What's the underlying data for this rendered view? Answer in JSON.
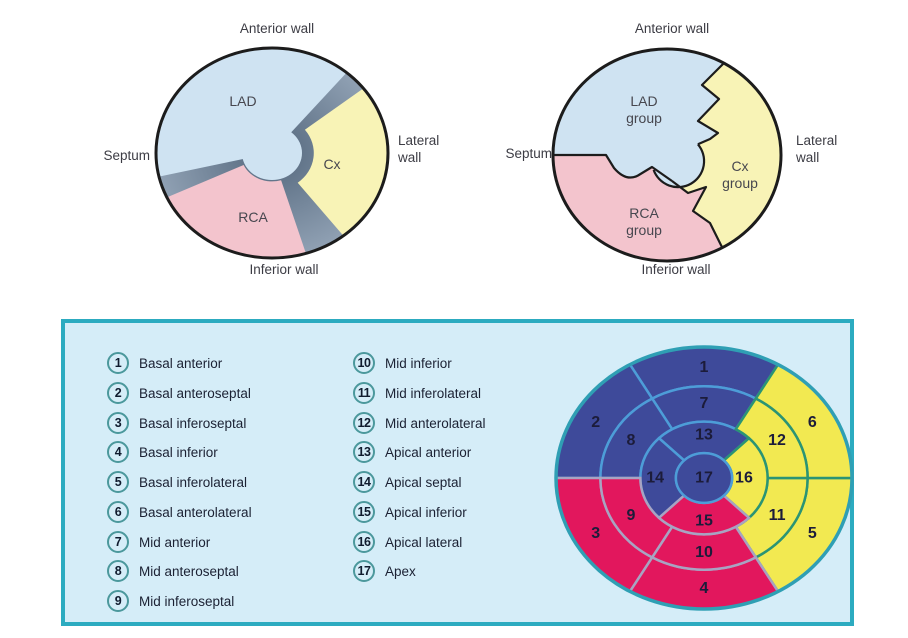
{
  "figures": {
    "artery_map": {
      "walls": {
        "top": "Anterior wall",
        "left": "Septum",
        "right": "Lateral wall",
        "bottom": "Inferior wall"
      },
      "sectors": {
        "lad": "LAD",
        "cx": "Cx",
        "rca": "RCA"
      }
    },
    "artery_groups": {
      "walls": {
        "top": "Anterior wall",
        "left": "Septum",
        "right": "Lateral wall",
        "bottom": "Inferior wall"
      },
      "sectors": {
        "lad": [
          "LAD",
          "group"
        ],
        "cx": [
          "Cx",
          "group"
        ],
        "rca": [
          "RCA",
          "group"
        ]
      }
    }
  },
  "legend": {
    "items": [
      {
        "num": "1",
        "label": "Basal anterior"
      },
      {
        "num": "2",
        "label": "Basal anteroseptal"
      },
      {
        "num": "3",
        "label": "Basal inferoseptal"
      },
      {
        "num": "4",
        "label": "Basal inferior"
      },
      {
        "num": "5",
        "label": "Basal inferolateral"
      },
      {
        "num": "6",
        "label": "Basal anterolateral"
      },
      {
        "num": "7",
        "label": "Mid anterior"
      },
      {
        "num": "8",
        "label": "Mid anteroseptal"
      },
      {
        "num": "9",
        "label": "Mid inferoseptal"
      },
      {
        "num": "10",
        "label": "Mid inferior"
      },
      {
        "num": "11",
        "label": "Mid inferolateral"
      },
      {
        "num": "12",
        "label": "Mid anterolateral"
      },
      {
        "num": "13",
        "label": "Apical anterior"
      },
      {
        "num": "14",
        "label": "Apical septal"
      },
      {
        "num": "15",
        "label": "Apical inferior"
      },
      {
        "num": "16",
        "label": "Apical lateral"
      },
      {
        "num": "17",
        "label": "Apex"
      }
    ]
  },
  "bullseye": {
    "segments": [
      {
        "num": "1",
        "name": "Basal anterior",
        "territory": "lad"
      },
      {
        "num": "2",
        "name": "Basal anteroseptal",
        "territory": "lad"
      },
      {
        "num": "3",
        "name": "Basal inferoseptal",
        "territory": "rca"
      },
      {
        "num": "4",
        "name": "Basal inferior",
        "territory": "rca"
      },
      {
        "num": "5",
        "name": "Basal inferolateral",
        "territory": "cx"
      },
      {
        "num": "6",
        "name": "Basal anterolateral",
        "territory": "cx"
      },
      {
        "num": "7",
        "name": "Mid anterior",
        "territory": "lad"
      },
      {
        "num": "8",
        "name": "Mid anteroseptal",
        "territory": "lad"
      },
      {
        "num": "9",
        "name": "Mid inferoseptal",
        "territory": "rca"
      },
      {
        "num": "10",
        "name": "Mid inferior",
        "territory": "rca"
      },
      {
        "num": "11",
        "name": "Mid inferolateral",
        "territory": "cx"
      },
      {
        "num": "12",
        "name": "Mid anterolateral",
        "territory": "cx"
      },
      {
        "num": "13",
        "name": "Apical anterior",
        "territory": "lad"
      },
      {
        "num": "14",
        "name": "Apical septal",
        "territory": "lad"
      },
      {
        "num": "15",
        "name": "Apical inferior",
        "territory": "rca"
      },
      {
        "num": "16",
        "name": "Apical lateral",
        "territory": "cx"
      },
      {
        "num": "17",
        "name": "Apex",
        "territory": "lad"
      }
    ]
  },
  "colors": {
    "panel_bg": "#d5edf8",
    "panel_border": "#2cabc0",
    "badge_border": "#4b989c",
    "lad_light": "#cfe3f2",
    "cx_light": "#f8f3b6",
    "rca_light": "#f3c4cd",
    "wedge": "#8396ab",
    "outline": "#1c1c1c",
    "lad": "#3e4a9a",
    "cx": "#f2e951",
    "rca": "#e2175d",
    "lad_div": "#4d9dd8",
    "cx_div": "#2b9474",
    "rca_div": "#a8a3c2",
    "rim": "#2f9fb4",
    "seg_num": "#1c1c3a"
  }
}
